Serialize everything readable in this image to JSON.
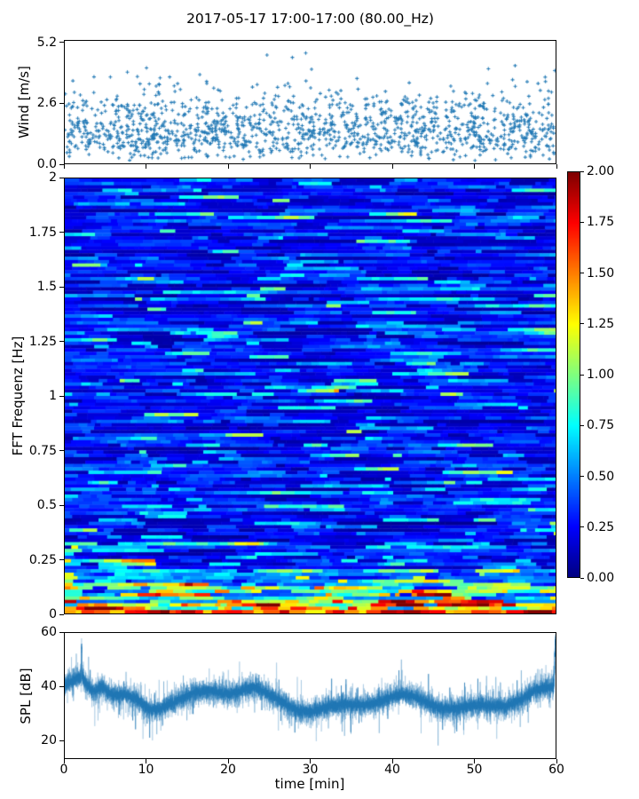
{
  "figure": {
    "title": "2017-05-17 17:00-17:00 (80.00_Hz)",
    "background": "#ffffff",
    "text_color": "#000000",
    "accent_color": "#1f77b4"
  },
  "chart_data": [
    {
      "id": "wind",
      "type": "scatter",
      "ylabel": "Wind [m/s]",
      "ytick_labels": [
        "0.0",
        "2.6",
        "5.2"
      ],
      "ytick_values": [
        0.0,
        2.6,
        5.2
      ],
      "ylim": [
        0,
        5.3
      ],
      "xlim": [
        0,
        60
      ],
      "xtick_values": [
        0,
        10,
        20,
        30,
        40,
        50,
        60
      ],
      "marker": "+",
      "color": "#1f77b4",
      "n_points": 1450,
      "value_range": [
        0.05,
        5.2
      ],
      "typical_band": [
        0.5,
        2.6
      ],
      "distribution": "right-skewed, mode near 1.2 m/s, sparse tail to 5.2",
      "seed": 20170517
    },
    {
      "id": "fft-spectrogram",
      "type": "heatmap",
      "ylabel": "FFT Frequenz [Hz]",
      "ytick_labels": [
        "2",
        "1.75",
        "1.5",
        "1.25",
        "1",
        "0.75",
        "0.5",
        "0.25",
        "0"
      ],
      "ytick_values": [
        2,
        1.75,
        1.5,
        1.25,
        1,
        0.75,
        0.5,
        0.25,
        0
      ],
      "ylim": [
        0,
        2
      ],
      "xlim": [
        0,
        60
      ],
      "colormap": "jet",
      "vmin": 0,
      "vmax": 2,
      "n_freq_bins": 128,
      "intensity_profile": [
        {
          "freq_band": [
            0.0,
            0.018
          ],
          "mean": 1.75,
          "note": "dark-red base band"
        },
        {
          "freq_band": [
            0.018,
            0.055
          ],
          "mean": 1.2,
          "note": "red/orange/yellow mix"
        },
        {
          "freq_band": [
            0.055,
            0.13
          ],
          "mean": 0.75,
          "note": "cyan/green/yellow streaks"
        },
        {
          "freq_band": [
            0.13,
            0.2
          ],
          "mean": 0.45,
          "note": "blue with cyan streaks"
        },
        {
          "freq_band": [
            0.2,
            0.6
          ],
          "mean": 0.32,
          "note": "blue, frequent cyan streaks"
        },
        {
          "freq_band": [
            0.6,
            2.0
          ],
          "mean": 0.26,
          "note": "blue, occasional cyan streaks"
        }
      ],
      "seed": 80
    },
    {
      "id": "spl",
      "type": "line",
      "ylabel": "SPL [dB]",
      "xlabel": "time [min]",
      "ytick_labels": [
        "20",
        "40",
        "60"
      ],
      "ytick_values": [
        20,
        40,
        60
      ],
      "ylim": [
        13.3,
        60
      ],
      "xlim": [
        0,
        60
      ],
      "xtick_labels": [
        "0",
        "10",
        "20",
        "30",
        "40",
        "50",
        "60"
      ],
      "xtick_values": [
        0,
        10,
        20,
        30,
        40,
        50,
        60
      ],
      "color": "#1f77b4",
      "mean_level": 35,
      "band_range": [
        27,
        46
      ],
      "peaks": [
        {
          "t": 2.0,
          "value": 57
        },
        {
          "t": 4.6,
          "value": 50
        },
        {
          "t": 60.0,
          "value": 55
        }
      ],
      "n_samples": 6000,
      "seed": 515
    }
  ],
  "colorbar": {
    "colormap": "jet",
    "tick_labels": [
      "2.00",
      "1.75",
      "1.50",
      "1.25",
      "1.00",
      "0.75",
      "0.50",
      "0.25",
      "0.00"
    ],
    "tick_values": [
      2,
      1.75,
      1.5,
      1.25,
      1,
      0.75,
      0.5,
      0.25,
      0
    ],
    "vmin": 0,
    "vmax": 2,
    "vmin_color": "#00007f",
    "vmax_color": "#7f0000"
  }
}
